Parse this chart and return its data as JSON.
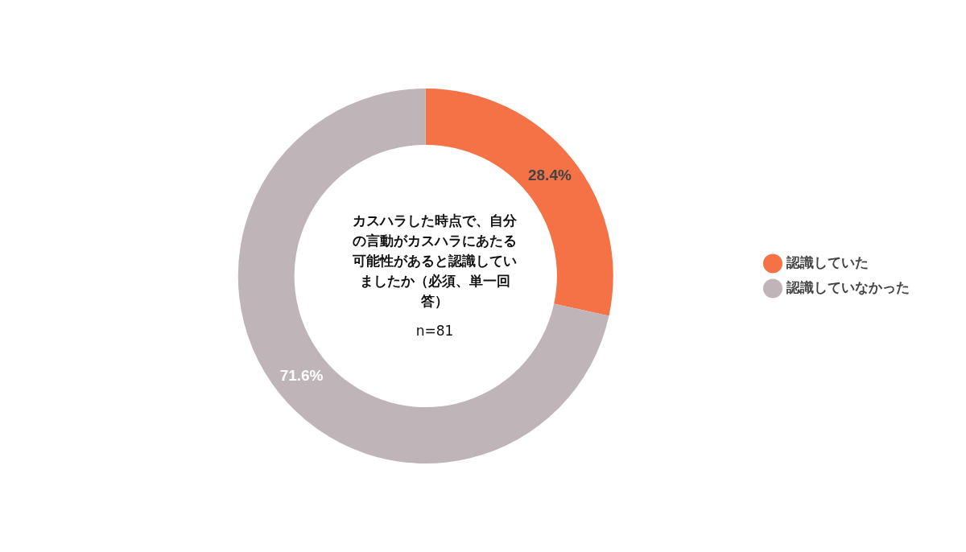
{
  "chart_data": {
    "type": "donut",
    "title": "カスハラした時点で、自分の言動がカスハラにあたる可能性があると認識していましたか（必須、単一回答）",
    "subtitle": "n=81",
    "categories": [
      "認識していた",
      "認識していなかった"
    ],
    "values": [
      28.4,
      71.6
    ],
    "colors": [
      "#f47246",
      "#bfb5b8"
    ],
    "value_labels": [
      "28.4%",
      "71.6%"
    ],
    "legend": "right"
  }
}
